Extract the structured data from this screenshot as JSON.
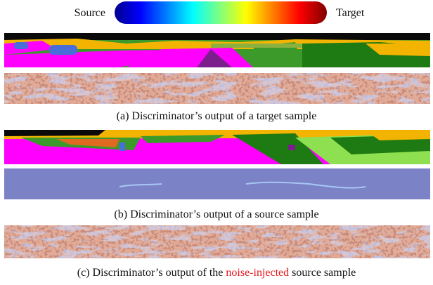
{
  "colorbar": {
    "left_label": "Source",
    "right_label": "Target"
  },
  "captions": {
    "a": "(a) Discriminator’s output of a target sample",
    "b": "(b) Discriminator’s output of a source sample",
    "c": {
      "before": "(c) Discriminator’s output of the ",
      "highlight": "noise-injected",
      "after": " source sample"
    }
  }
}
